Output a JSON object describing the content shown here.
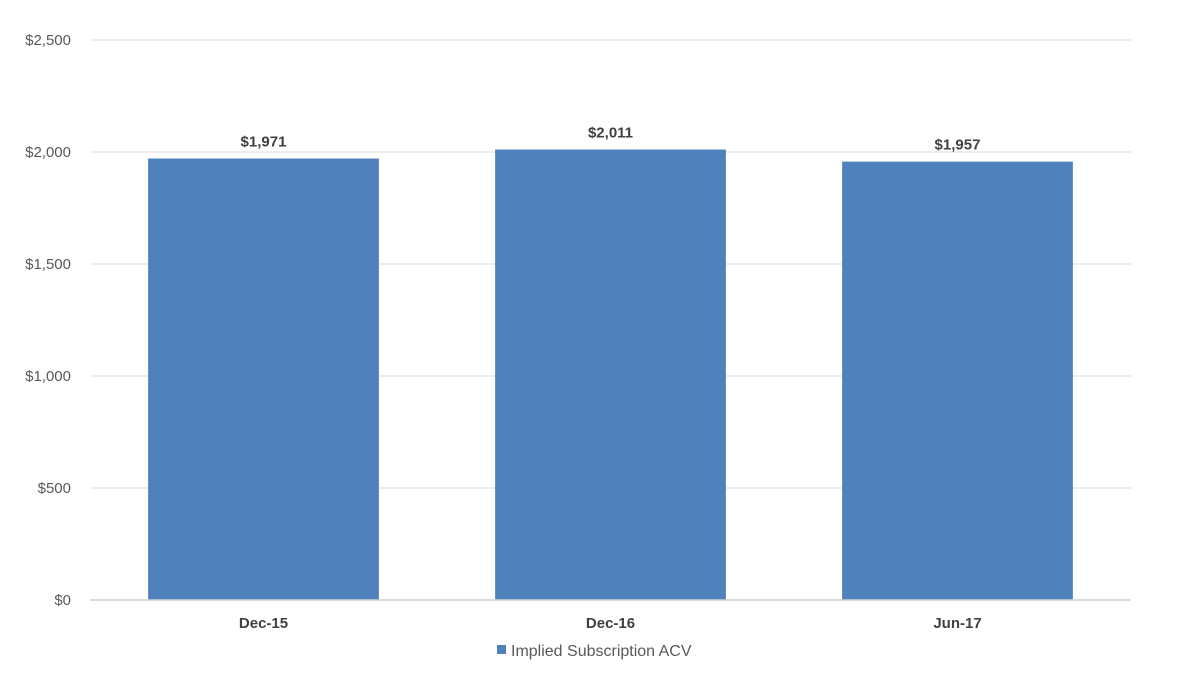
{
  "chart_data": {
    "type": "bar",
    "categories": [
      "Dec-15",
      "Dec-16",
      "Jun-17"
    ],
    "series": [
      {
        "name": "Implied Subscription ACV",
        "values": [
          1971,
          2011,
          1957
        ],
        "data_labels": [
          "$1,971",
          "$2,011",
          "$1,957"
        ]
      }
    ],
    "ylim": [
      0,
      2500
    ],
    "y_ticks": [
      0,
      500,
      1000,
      1500,
      2000,
      2500
    ],
    "y_tick_labels": [
      "$0",
      "$500",
      "$1,000",
      "$1,500",
      "$2,000",
      "$2,500"
    ],
    "grid": true,
    "legend_position": "bottom",
    "colors": {
      "bar": "#4f81bd",
      "grid": "#e3e3e3",
      "axis": "#d0d0d0"
    }
  }
}
